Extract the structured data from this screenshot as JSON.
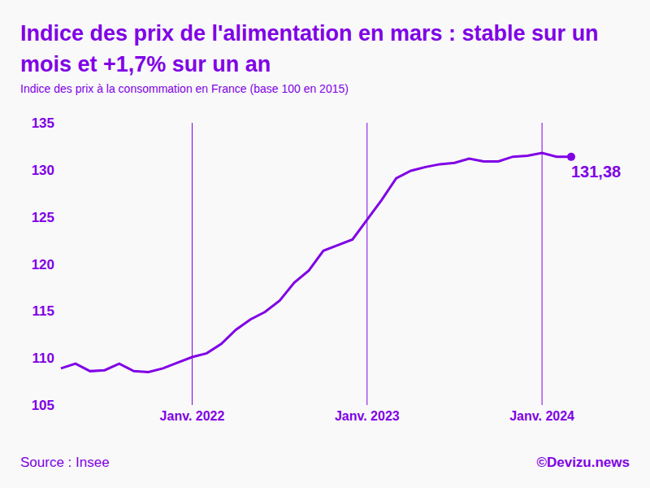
{
  "chart_data": {
    "type": "line",
    "title": "Indice des prix de l'alimentation en mars : stable sur un mois et +1,7% sur un an",
    "subtitle": "Indice des prix à la consommation en France (base 100 en 2015)",
    "source": "Source : Insee",
    "credit": "©Devizu.news",
    "categories": [
      null,
      null,
      null,
      null,
      null,
      null,
      null,
      null,
      null,
      "Janv. 2022",
      null,
      null,
      null,
      null,
      null,
      null,
      null,
      null,
      null,
      null,
      null,
      "Janv. 2023",
      null,
      null,
      null,
      null,
      null,
      null,
      null,
      null,
      null,
      null,
      null,
      "Janv. 2024",
      null,
      null
    ],
    "values": [
      108.9,
      109.4,
      108.6,
      108.7,
      109.4,
      108.6,
      108.5,
      108.9,
      109.5,
      110.1,
      110.5,
      111.5,
      113.0,
      114.1,
      114.9,
      116.1,
      118.0,
      119.3,
      121.4,
      122.0,
      122.6,
      124.7,
      126.8,
      129.1,
      129.9,
      130.3,
      130.6,
      130.75,
      131.2,
      130.9,
      130.9,
      131.4,
      131.5,
      131.8,
      131.4,
      131.38
    ],
    "value_labels": [
      null,
      null,
      null,
      null,
      null,
      null,
      null,
      null,
      null,
      null,
      null,
      null,
      null,
      null,
      null,
      null,
      null,
      null,
      null,
      null,
      null,
      null,
      null,
      null,
      null,
      null,
      null,
      null,
      null,
      null,
      null,
      null,
      null,
      null,
      null,
      "131,38"
    ],
    "color": "#8000e6",
    "ylim": [
      105,
      135
    ],
    "yticks": [
      105,
      110,
      115,
      120,
      125,
      130,
      135
    ],
    "grid": "x",
    "marker": "end"
  }
}
